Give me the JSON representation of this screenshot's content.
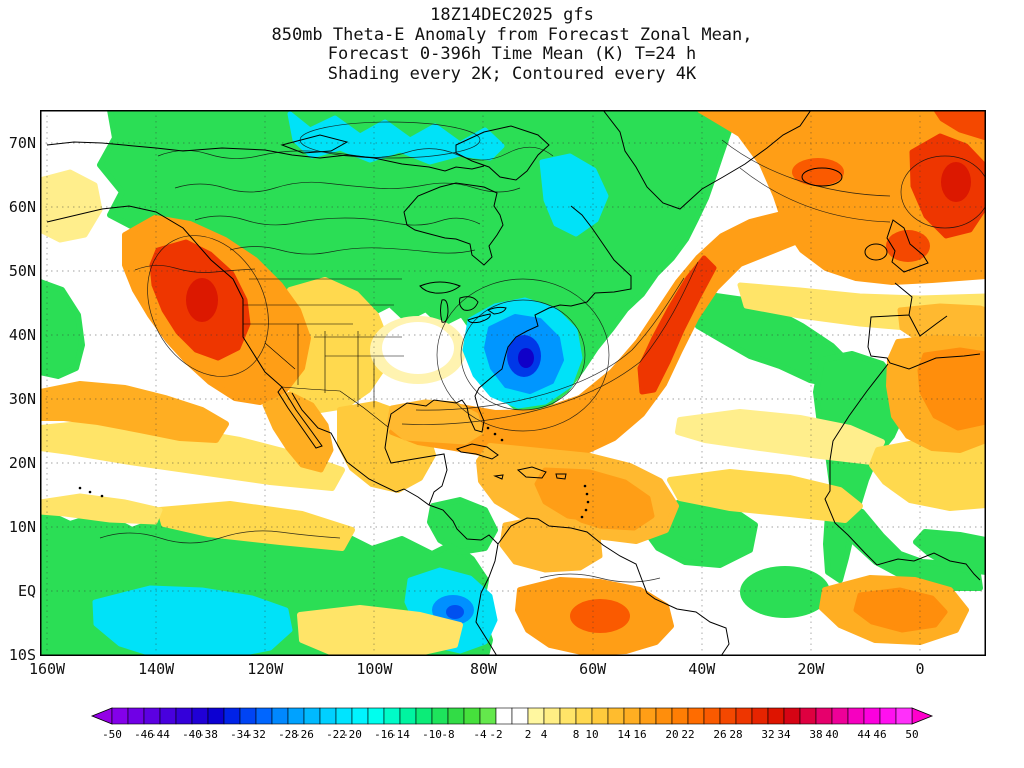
{
  "title": {
    "line1": "18Z14DEC2025 gfs",
    "line2": "850mb Theta-E Anomaly from Forecast Zonal Mean,",
    "line3": "Forecast 0-396h Time Mean (K) T=24 h",
    "line4": "Shading every 2K; Contoured every 4K"
  },
  "map": {
    "y_ticks": [
      "70N",
      "60N",
      "50N",
      "40N",
      "30N",
      "20N",
      "10N",
      "EQ",
      "10S"
    ],
    "x_ticks": [
      "160W",
      "140W",
      "120W",
      "100W",
      "80W",
      "60W",
      "40W",
      "20W",
      "0"
    ]
  },
  "colorbar": {
    "min": -50,
    "max": 50,
    "step": 2,
    "labels": [
      "-50",
      "-46",
      "-44",
      "-40",
      "-38",
      "-34",
      "-32",
      "-28",
      "-26",
      "-22",
      "-20",
      "-16",
      "-14",
      "-10",
      "-8",
      "-4",
      "-2",
      "2",
      "4",
      "8",
      "10",
      "14",
      "16",
      "20",
      "22",
      "26",
      "28",
      "32",
      "34",
      "38",
      "40",
      "44",
      "46",
      "50"
    ],
    "left_arrow_color": "#9400E6",
    "right_arrow_color": "#FF00CC",
    "segment_colors": [
      "#8400EA",
      "#7000E6",
      "#5C00E2",
      "#4800DE",
      "#3400DA",
      "#2000D6",
      "#0C00D2",
      "#0022E8",
      "#0044F4",
      "#0066FF",
      "#0088FF",
      "#00A2FF",
      "#00BAFF",
      "#00D0FF",
      "#00E4FF",
      "#00F4FF",
      "#00FFEE",
      "#00FCC8",
      "#00F4A0",
      "#0CEC78",
      "#1EE45C",
      "#32DC46",
      "#46E03C",
      "#64E84C",
      "#FFFFFF",
      "#FFFFFF",
      "#FFF7A0",
      "#FFEE84",
      "#FFE468",
      "#FFD84E",
      "#FFCA3C",
      "#FFBC2E",
      "#FFAE22",
      "#FF9E16",
      "#FF8E0C",
      "#FF7E04",
      "#FF6C00",
      "#FA5A00",
      "#F44800",
      "#EE3600",
      "#E62400",
      "#DE1400",
      "#D60414",
      "#DE0040",
      "#E6006C",
      "#EE0098",
      "#F600C0",
      "#FC00DE",
      "#FF10F0",
      "#FF30FA"
    ]
  }
}
